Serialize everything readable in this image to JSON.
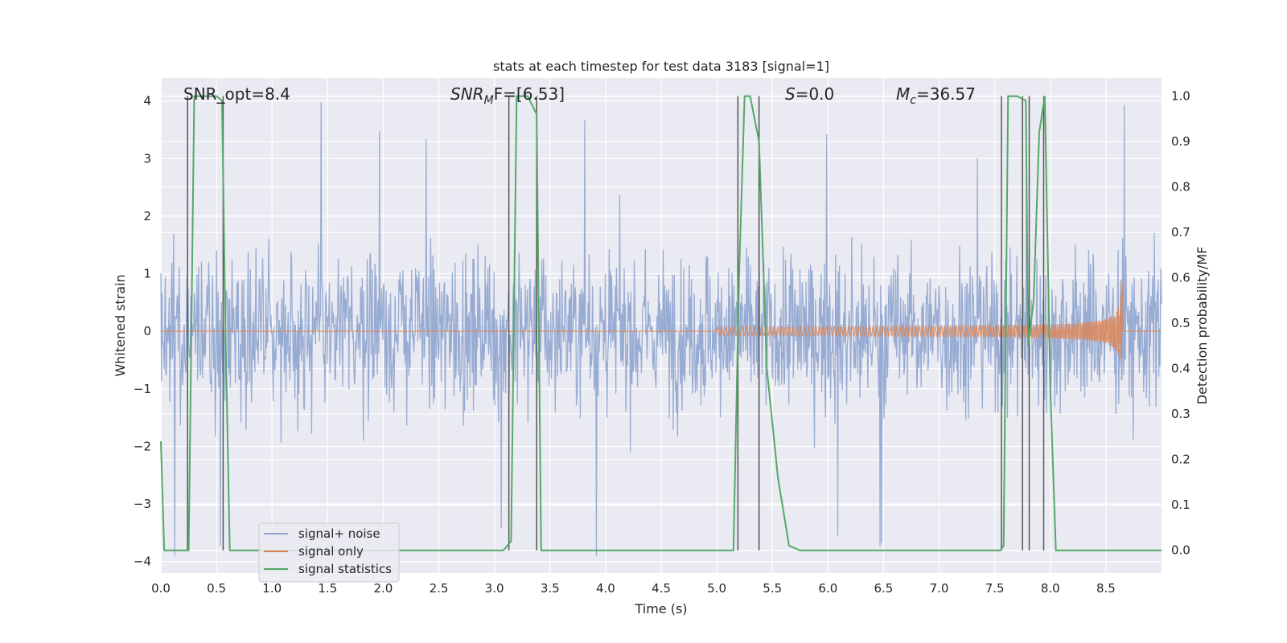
{
  "chart_data": {
    "type": "line",
    "title": "stats at each timestep for test data 3183 [signal=1]",
    "xlabel": "Time (s)",
    "ylabel_left": "Whitened strain",
    "ylabel_right": "Detection probability/MF",
    "xlim": [
      0,
      9.0
    ],
    "ylim_left": [
      -4.2,
      4.4
    ],
    "ylim_right": [
      -0.05,
      1.04
    ],
    "x_ticks": [
      "0.0",
      "0.5",
      "1.0",
      "1.5",
      "2.0",
      "2.5",
      "3.0",
      "3.5",
      "4.0",
      "4.5",
      "5.0",
      "5.5",
      "6.0",
      "6.5",
      "7.0",
      "7.5",
      "8.0",
      "8.5"
    ],
    "y_ticks_left": [
      "4",
      "3",
      "2",
      "1",
      "0",
      "−1",
      "−2",
      "−3",
      "−4"
    ],
    "y_ticks_right": [
      "1.0",
      "0.9",
      "0.8",
      "0.7",
      "0.6",
      "0.5",
      "0.4",
      "0.3",
      "0.2",
      "0.1",
      "0.0"
    ],
    "grid": true,
    "legend_position": "lower-left",
    "annotations": {
      "snr_opt": "SNR_opt=8.4",
      "snr_mf_base": "SNR",
      "snr_mf_sub": "M",
      "snr_mf_rest": "F=[6.53]",
      "s_label": "S",
      "s_value": "=0.0",
      "mc_label": "M",
      "mc_sub": "c",
      "mc_value": "=36.57"
    },
    "series": [
      {
        "name": "signal+ noise",
        "color": "#8fa5cf",
        "note": "whitened strain noise, approx envelope -2.7..2.5 with spikes to ~±4"
      },
      {
        "name": "signal only",
        "color": "#dd8452",
        "chirp": {
          "start": 5.0,
          "merger": 8.65,
          "peak_amplitude": 1.4
        }
      },
      {
        "name": "signal statistics",
        "color": "#55a868",
        "x": [
          0.0,
          0.03,
          0.1,
          0.2,
          0.25,
          0.3,
          0.4,
          0.5,
          0.55,
          0.58,
          0.62,
          0.7,
          1.0,
          2.0,
          3.0,
          3.08,
          3.15,
          3.2,
          3.3,
          3.38,
          3.42,
          3.5,
          3.95,
          4.05,
          5.0,
          5.15,
          5.2,
          5.25,
          5.3,
          5.38,
          5.45,
          5.55,
          5.65,
          5.75,
          6.0,
          7.0,
          7.55,
          7.58,
          7.62,
          7.7,
          7.78,
          7.8,
          7.85,
          7.9,
          7.95,
          8.0,
          8.05,
          8.1,
          8.5,
          9.0
        ],
        "values": [
          0.24,
          0.0,
          0.0,
          0.0,
          0.0,
          1.0,
          1.0,
          1.0,
          0.99,
          0.5,
          0.0,
          0.0,
          0.0,
          0.0,
          0.0,
          0.0,
          0.02,
          1.0,
          1.0,
          0.96,
          0.0,
          0.0,
          0.0,
          0.0,
          0.0,
          0.0,
          0.6,
          1.0,
          1.0,
          0.9,
          0.4,
          0.16,
          0.01,
          0.0,
          0.0,
          0.0,
          0.0,
          0.01,
          1.0,
          1.0,
          0.99,
          0.45,
          0.55,
          0.92,
          1.0,
          0.35,
          0.0,
          0.0,
          0.0,
          0.0
        ]
      }
    ],
    "vertical_markers": [
      0.24,
      0.56,
      3.13,
      3.38,
      5.19,
      5.38,
      7.56,
      7.75,
      7.81,
      7.94
    ]
  }
}
